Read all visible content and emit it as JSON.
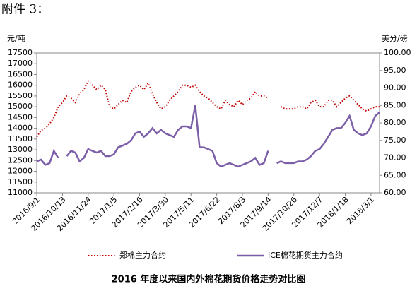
{
  "heading": "附件 3：",
  "chart_data": {
    "type": "line",
    "title": "2016 年度以来国内外棉花期货价格走势对比图",
    "y_label": "元/吨",
    "y2_label": "美分/磅",
    "categories": [
      "2016/9/1",
      null,
      null,
      null,
      null,
      null,
      "2016/10/13",
      null,
      null,
      null,
      null,
      null,
      "2016/11/24",
      null,
      null,
      null,
      null,
      null,
      "2017/1/5",
      null,
      null,
      null,
      null,
      null,
      "2017/2/16",
      null,
      null,
      null,
      null,
      null,
      "2017/3/30",
      null,
      null,
      null,
      null,
      null,
      "2017/5/11",
      null,
      null,
      null,
      null,
      null,
      "2017/6/22",
      null,
      null,
      null,
      null,
      null,
      "2017/8/3",
      null,
      null,
      null,
      null,
      null,
      "2017/9/14",
      null,
      null,
      null,
      null,
      null,
      "2017/10/26",
      null,
      null,
      null,
      null,
      null,
      "2017/12/7",
      null,
      null,
      null,
      null,
      null,
      "2018/1/18",
      null,
      null,
      null,
      null,
      null,
      "2018/3/1",
      null,
      null
    ],
    "ylim": [
      11000,
      17500
    ],
    "yticks": [
      11000,
      11500,
      12000,
      12500,
      13000,
      13500,
      14000,
      14500,
      15000,
      15500,
      16000,
      16500,
      17000,
      17500
    ],
    "y2lim": [
      60,
      100
    ],
    "y2ticks": [
      {
        "value": 60,
        "label": "60.00"
      },
      {
        "value": 65,
        "label": "65.00"
      },
      {
        "value": 70,
        "label": "70.00"
      },
      {
        "value": 75,
        "label": "75.00"
      },
      {
        "value": 80,
        "label": "80.00"
      },
      {
        "value": 85,
        "label": "85.00"
      },
      {
        "value": 90,
        "label": "90.00"
      },
      {
        "value": 95,
        "label": "95.00"
      },
      {
        "value": 100,
        "label": "100.00"
      }
    ],
    "legend": "bottom",
    "series": [
      {
        "name": "郑棉主力合约",
        "color": "#c00000",
        "dash": "dotted",
        "values": [
          13600,
          13900,
          14000,
          14200,
          14500,
          15000,
          15200,
          15500,
          15400,
          15200,
          15600,
          15800,
          16200,
          16000,
          15800,
          16000,
          15800,
          15000,
          14900,
          15100,
          15300,
          15200,
          15700,
          15900,
          16000,
          15800,
          16100,
          15600,
          15200,
          14900,
          15000,
          15300,
          15500,
          15700,
          16000,
          16000,
          15900,
          16000,
          15700,
          15500,
          15400,
          15200,
          15000,
          14900,
          15300,
          15100,
          15000,
          15300,
          15100,
          15300,
          15400,
          15700,
          15500,
          15500,
          15400,
          null,
          null,
          15000,
          14900,
          14900,
          14900,
          15000,
          15000,
          14900,
          15200,
          15300,
          15000,
          15000,
          15300,
          15300,
          15000,
          15200,
          15400,
          15500,
          15300,
          15100,
          14900,
          14800,
          14900,
          15000,
          15000
        ]
      },
      {
        "name": "ICE棉花期货主力合约",
        "color": "#7b5ea7",
        "dash": "solid",
        "axis": "y2",
        "values": [
          69,
          69.5,
          68,
          68.5,
          72,
          70,
          null,
          70.5,
          72,
          71.5,
          69,
          70,
          72.5,
          72,
          71.5,
          72,
          70.5,
          70.5,
          71,
          73,
          73.5,
          74,
          75,
          77,
          77.5,
          76,
          77,
          78.5,
          77,
          78,
          77,
          76.5,
          76,
          78,
          79,
          79,
          78.5,
          85,
          73,
          73,
          72.5,
          72,
          68.5,
          67.5,
          68,
          68.5,
          68,
          67.5,
          68,
          68.5,
          69,
          70,
          68,
          68.5,
          72,
          null,
          68.5,
          69,
          68.5,
          68.5,
          68.5,
          69,
          69,
          69.5,
          70.5,
          72,
          72.5,
          74,
          76,
          78,
          78.5,
          78.5,
          80,
          82,
          78,
          77,
          76.5,
          77,
          79,
          82,
          83
        ]
      }
    ]
  }
}
